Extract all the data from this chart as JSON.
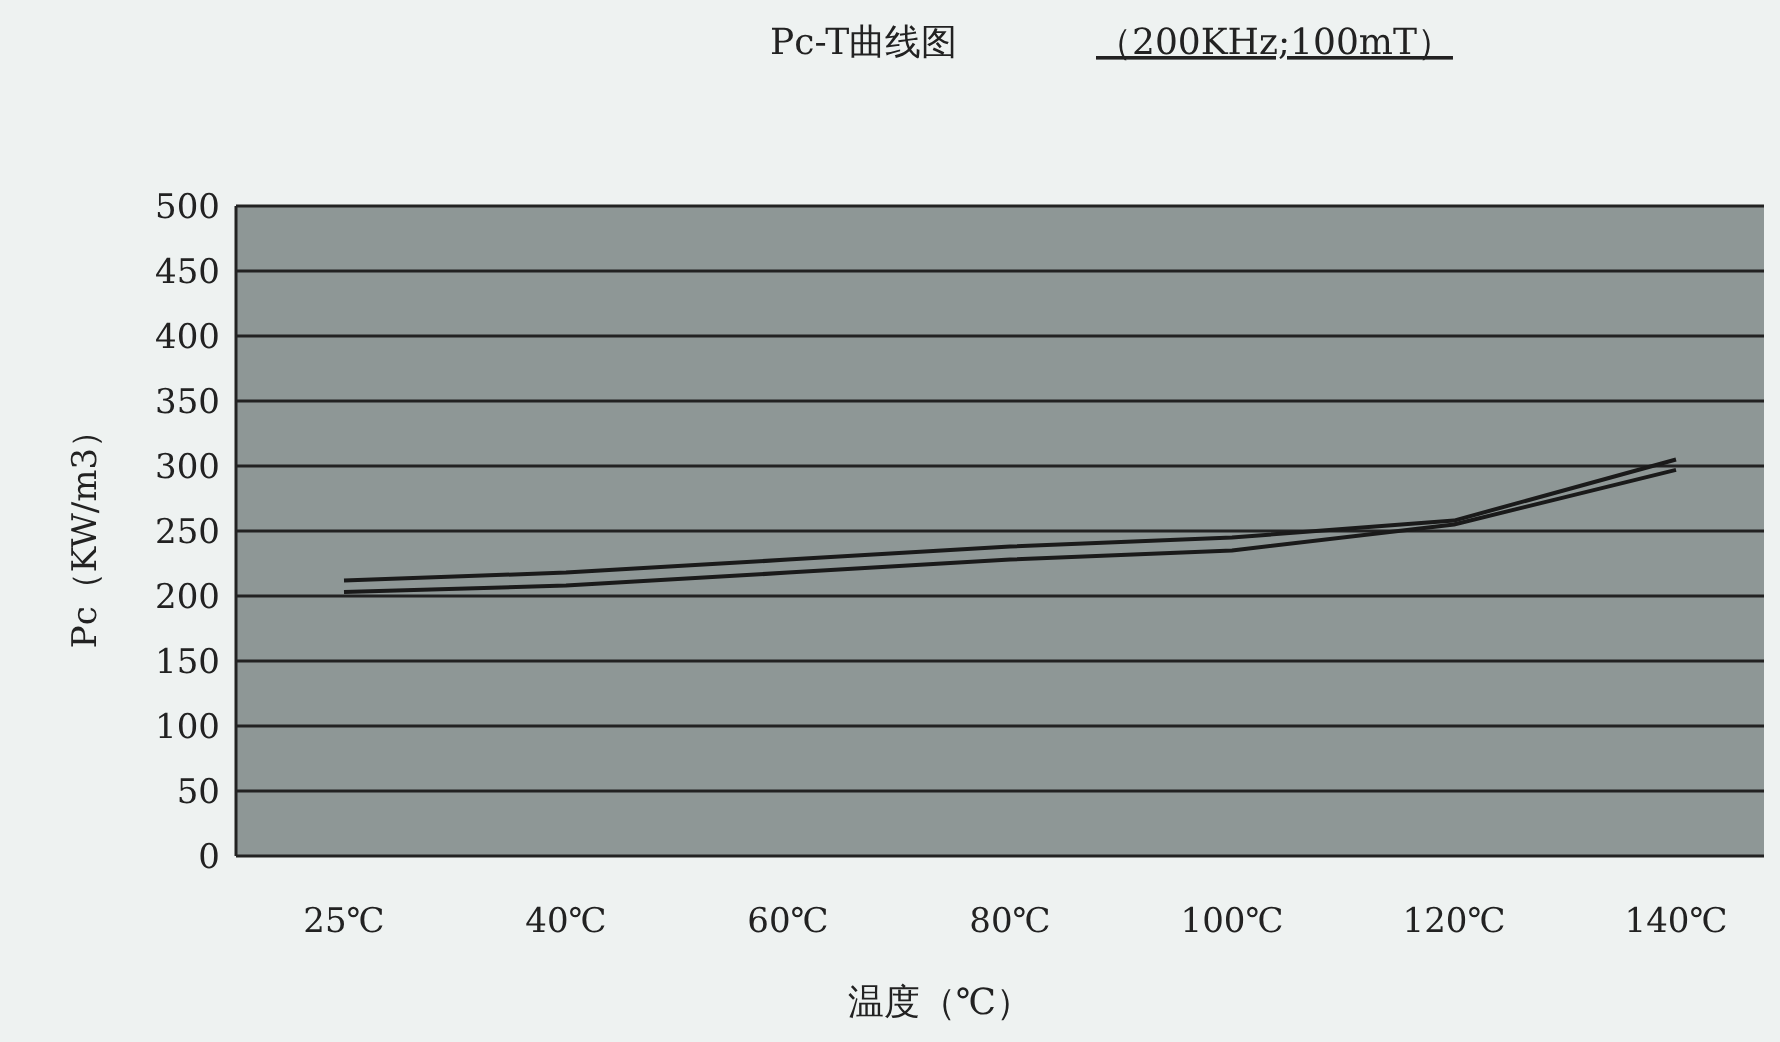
{
  "chart_data": {
    "type": "line",
    "title": "Pc-T曲线图",
    "subtitle": "（200KHz;100mT）",
    "xlabel": "温度（℃）",
    "ylabel": "Pc（KW/m3）",
    "categories": [
      "25℃",
      "40℃",
      "60℃",
      "80℃",
      "100℃",
      "120℃",
      "140℃"
    ],
    "series": [
      {
        "color": "#1a1a1a",
        "values": [
          212,
          218,
          228,
          238,
          245,
          258,
          305
        ]
      },
      {
        "color": "#1a1a1a",
        "values": [
          203,
          208,
          218,
          228,
          235,
          255,
          297
        ]
      }
    ],
    "ylim": [
      0,
      500
    ],
    "yticks": [
      0,
      50,
      100,
      150,
      200,
      250,
      300,
      350,
      400,
      450,
      500
    ],
    "grid": "y",
    "marker": "none",
    "line_style": "solid"
  }
}
